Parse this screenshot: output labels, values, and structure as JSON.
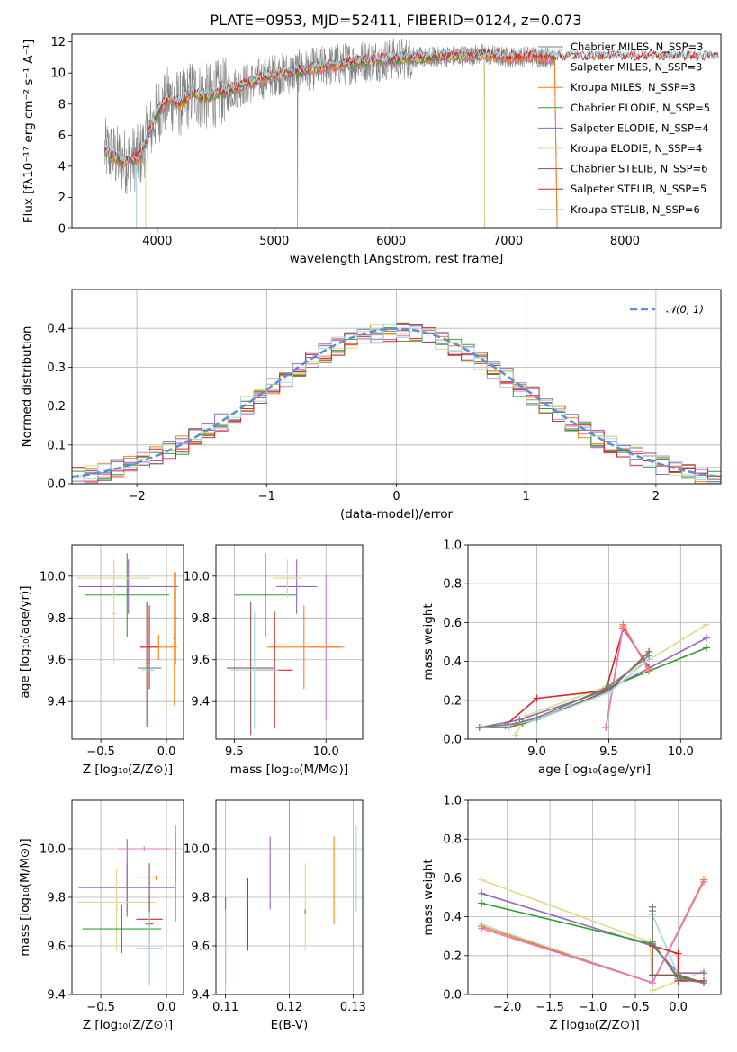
{
  "figure": {
    "title": "PLATE=0953, MJD=52411, FIBERID=0124, z=0.073"
  },
  "colors": {
    "chabrier_miles": "#7f7f7f",
    "salpeter_miles": "#e377c2",
    "kroupa_miles": "#ff7f0e",
    "chabrier_elodie": "#2ca02c",
    "salpeter_elodie": "#9467bd",
    "kroupa_elodie": "#dbdb8d",
    "chabrier_stelib": "#8c564b",
    "salpeter_stelib": "#d62728",
    "kroupa_stelib": "#9edae5",
    "data": "#808080",
    "normal": "#5b8fd6"
  },
  "chart_data": [
    {
      "id": "spectrum",
      "type": "line",
      "title": "PLATE=0953, MJD=52411, FIBERID=0124, z=0.073",
      "xlabel": "wavelength [Angstrom, rest frame]",
      "ylabel": "Flux [fλ10⁻¹⁷ erg cm⁻² s⁻¹ A⁻¹]",
      "xlim": [
        3270,
        8820
      ],
      "ylim": [
        0,
        12.5
      ],
      "xticks": [
        "4000",
        "5000",
        "6000",
        "7000",
        "8000"
      ],
      "xtick_values": [
        4000,
        5000,
        6000,
        7000,
        8000
      ],
      "yticks": [
        "0",
        "2",
        "4",
        "6",
        "8",
        "10",
        "12"
      ],
      "ytick_values": [
        0,
        2,
        4,
        6,
        8,
        10,
        12
      ],
      "legend_position": "right",
      "legend": [
        "Chabrier MILES, N_SSP=3",
        "Salpeter MILES, N_SSP=3",
        "Kroupa MILES, N_SSP=3",
        "Chabrier ELODIE, N_SSP=5",
        "Salpeter ELODIE, N_SSP=4",
        "Kroupa ELODIE, N_SSP=4",
        "Chabrier STELIB, N_SSP=6",
        "Salpeter STELIB, N_SSP=5",
        "Kroupa STELIB, N_SSP=6"
      ],
      "continuum": {
        "x": [
          3550,
          3700,
          3850,
          3950,
          4000,
          4100,
          4200,
          4300,
          4400,
          4600,
          4800,
          5000,
          5200,
          5500,
          5800,
          6000,
          6300,
          6500,
          6800,
          7000,
          7200,
          7400
        ],
        "y": [
          5.0,
          4.3,
          4.6,
          6.5,
          7.5,
          8.4,
          8.0,
          8.8,
          8.4,
          8.9,
          9.4,
          9.9,
          10.1,
          10.5,
          10.8,
          10.9,
          11.0,
          11.1,
          11.2,
          11.0,
          11.1,
          11.0
        ]
      }
    },
    {
      "id": "residuals",
      "type": "histogram",
      "xlabel": "(data-model)/error",
      "ylabel": "Normed distribution",
      "xlim": [
        -2.5,
        2.5
      ],
      "ylim": [
        0,
        0.5
      ],
      "xticks": [
        "−2",
        "−1",
        "0",
        "1",
        "2"
      ],
      "xtick_values": [
        -2,
        -1,
        0,
        1,
        2
      ],
      "yticks": [
        "0.0",
        "0.1",
        "0.2",
        "0.3",
        "0.4"
      ],
      "ytick_values": [
        0,
        0.1,
        0.2,
        0.3,
        0.4
      ],
      "bin_width": 0.1,
      "legend": [
        "𝒩(0, 1)"
      ],
      "legend_position": "top-right"
    },
    {
      "id": "age-vs-z",
      "type": "scatter",
      "xlabel": "Z [log₁₀(Z/Z⊙)]",
      "ylabel": "age  [log₁₀(age/yr)]",
      "xlim": [
        -0.72,
        0.13
      ],
      "ylim": [
        9.22,
        10.15
      ],
      "xticks": [
        "−0.5",
        "0.0"
      ],
      "xtick_values": [
        -0.5,
        0.0
      ],
      "yticks": [
        "9.4",
        "9.6",
        "9.8",
        "10.0"
      ],
      "ytick_values": [
        9.4,
        9.6,
        9.8,
        10.0
      ],
      "points": [
        {
          "model": "chabrier_elodie",
          "x": -0.3,
          "xerr": 0.32,
          "y": 9.91,
          "yerr": 0.2
        },
        {
          "model": "salpeter_elodie",
          "x": -0.29,
          "xerr": 0.38,
          "y": 9.95,
          "yerr": 0.13
        },
        {
          "model": "kroupa_elodie",
          "x": -0.4,
          "xerr": 0.28,
          "y": 9.99,
          "yerr": 0.09
        },
        {
          "model": "kroupa_elodie",
          "x": -0.4,
          "xerr": 0.02,
          "y": 9.82,
          "yerr": 0.24
        },
        {
          "model": "salpeter_miles",
          "x": 0.07,
          "xerr": 0.02,
          "y": 9.8,
          "yerr": 0.22
        },
        {
          "model": "kroupa_miles",
          "x": -0.06,
          "xerr": 0.14,
          "y": 9.66,
          "yerr": 0.06
        },
        {
          "model": "kroupa_miles",
          "x": 0.06,
          "xerr": 0.01,
          "y": 9.7,
          "yerr": 0.32
        },
        {
          "model": "salpeter_stelib",
          "x": -0.13,
          "xerr": 0.07,
          "y": 9.66,
          "yerr": 0.2
        },
        {
          "model": "chabrier_stelib",
          "x": -0.15,
          "xerr": 0.03,
          "y": 9.58,
          "yerr": 0.3
        },
        {
          "model": "kroupa_stelib",
          "x": -0.14,
          "xerr": 0.05,
          "y": 9.55,
          "yerr": 0.27
        },
        {
          "model": "chabrier_miles",
          "x": -0.13,
          "xerr": 0.09,
          "y": 9.56,
          "yerr": 0.02
        }
      ]
    },
    {
      "id": "age-vs-mass",
      "type": "scatter",
      "xlabel": "mass [log₁₀(M/M⊙)]",
      "ylabel": "",
      "xlim": [
        9.4,
        10.2
      ],
      "ylim": [
        9.22,
        10.15
      ],
      "xticks": [
        "9.5",
        "10.0"
      ],
      "xtick_values": [
        9.5,
        10.0
      ],
      "yticks": [
        "9.4",
        "9.6",
        "9.8",
        "10.0"
      ],
      "ytick_values": [
        9.4,
        9.6,
        9.8,
        10.0
      ],
      "points": [
        {
          "model": "chabrier_elodie",
          "x": 9.67,
          "xerr": 0.17,
          "y": 9.91,
          "yerr": 0.2
        },
        {
          "model": "salpeter_elodie",
          "x": 9.84,
          "xerr": 0.11,
          "y": 9.95,
          "yerr": 0.13
        },
        {
          "model": "kroupa_elodie",
          "x": 9.79,
          "xerr": 0.08,
          "y": 9.99,
          "yerr": 0.09
        },
        {
          "model": "salpeter_miles",
          "x": 10.0,
          "xerr": 0.1,
          "y": 9.66,
          "yerr": 0.35
        },
        {
          "model": "kroupa_miles",
          "x": 9.88,
          "xerr": 0.2,
          "y": 9.66,
          "yerr": 0.2
        },
        {
          "model": "salpeter_stelib",
          "x": 9.72,
          "xerr": 0.1,
          "y": 9.55,
          "yerr": 0.28
        },
        {
          "model": "chabrier_stelib",
          "x": 9.59,
          "xerr": 0.13,
          "y": 9.56,
          "yerr": 0.32
        },
        {
          "model": "kroupa_stelib",
          "x": 9.61,
          "xerr": 0.13,
          "y": 9.55,
          "yerr": 0.28
        }
      ]
    },
    {
      "id": "weight-vs-age",
      "type": "line",
      "xlabel": "age  [log₁₀(age/yr)]",
      "ylabel": "mass weight",
      "xlim": [
        8.52,
        10.28
      ],
      "ylim": [
        0,
        1
      ],
      "xticks": [
        "9.0",
        "9.5",
        "10.0"
      ],
      "xtick_values": [
        9.0,
        9.5,
        10.0
      ],
      "yticks": [
        "0.0",
        "0.2",
        "0.4",
        "0.6",
        "0.8",
        "1.0"
      ],
      "ytick_values": [
        0,
        0.2,
        0.4,
        0.6,
        0.8,
        1.0
      ],
      "series": [
        {
          "model": "kroupa_elodie",
          "x": [
            8.85,
            8.92,
            9.48,
            10.18
          ],
          "y": [
            0.02,
            0.12,
            0.27,
            0.59
          ]
        },
        {
          "model": "salpeter_elodie",
          "x": [
            8.6,
            8.88,
            9.48,
            10.18
          ],
          "y": [
            0.06,
            0.1,
            0.25,
            0.52
          ]
        },
        {
          "model": "chabrier_elodie",
          "x": [
            8.6,
            8.9,
            9.48,
            10.18
          ],
          "y": [
            0.06,
            0.08,
            0.26,
            0.47
          ]
        },
        {
          "model": "salpeter_stelib",
          "x": [
            8.6,
            8.78,
            9.0,
            9.48,
            9.6,
            9.78
          ],
          "y": [
            0.06,
            0.07,
            0.21,
            0.25,
            0.57,
            0.37
          ]
        },
        {
          "model": "kroupa_miles",
          "x": [
            9.48,
            9.6,
            9.78
          ],
          "y": [
            0.06,
            0.59,
            0.35
          ]
        },
        {
          "model": "salpeter_miles",
          "x": [
            9.48,
            9.6,
            9.78
          ],
          "y": [
            0.06,
            0.58,
            0.36
          ]
        },
        {
          "model": "chabrier_stelib",
          "x": [
            8.6,
            8.8,
            9.0,
            9.5,
            9.78
          ],
          "y": [
            0.06,
            0.06,
            0.1,
            0.25,
            0.45
          ]
        },
        {
          "model": "kroupa_stelib",
          "x": [
            8.6,
            8.8,
            9.0,
            9.5,
            9.78
          ],
          "y": [
            0.06,
            0.07,
            0.1,
            0.24,
            0.41
          ]
        },
        {
          "model": "chabrier_miles",
          "x": [
            8.6,
            8.85,
            9.0,
            9.5,
            9.78
          ],
          "y": [
            0.06,
            0.08,
            0.11,
            0.27,
            0.43
          ]
        }
      ]
    },
    {
      "id": "mass-vs-z",
      "type": "scatter",
      "xlabel": "Z [log₁₀(Z/Z⊙)]",
      "ylabel": "mass [log₁₀(M/M⊙)]",
      "xlim": [
        -0.72,
        0.13
      ],
      "ylim": [
        9.4,
        10.2
      ],
      "xticks": [
        "−0.5",
        "0.0"
      ],
      "xtick_values": [
        -0.5,
        0.0
      ],
      "yticks": [
        "9.4",
        "9.6",
        "9.8",
        "10.0"
      ],
      "ytick_values": [
        9.4,
        9.6,
        9.8,
        10.0
      ],
      "points": [
        {
          "model": "salpeter_elodie",
          "x": -0.3,
          "xerr": 0.37,
          "y": 9.84,
          "yerr": 0.1
        },
        {
          "model": "salpeter_elodie",
          "x": -0.3,
          "xerr": 0.01,
          "y": 9.88,
          "yerr": 0.16
        },
        {
          "model": "kroupa_elodie",
          "x": -0.38,
          "xerr": 0.3,
          "y": 9.78,
          "yerr": 0.05
        },
        {
          "model": "kroupa_elodie",
          "x": -0.38,
          "xerr": 0.01,
          "y": 9.75,
          "yerr": 0.17
        },
        {
          "model": "chabrier_elodie",
          "x": -0.34,
          "xerr": 0.3,
          "y": 9.67,
          "yerr": 0.1
        },
        {
          "model": "salpeter_miles",
          "x": -0.17,
          "xerr": 0.2,
          "y": 10.0,
          "yerr": 0.01
        },
        {
          "model": "salpeter_miles",
          "x": 0.07,
          "xerr": 0.01,
          "y": 9.98,
          "yerr": 0.12
        },
        {
          "model": "kroupa_miles",
          "x": -0.08,
          "xerr": 0.16,
          "y": 9.88,
          "yerr": 0.01
        },
        {
          "model": "kroupa_miles",
          "x": 0.07,
          "xerr": 0.01,
          "y": 9.88,
          "yerr": 0.18
        },
        {
          "model": "salpeter_stelib",
          "x": -0.13,
          "xerr": 0.1,
          "y": 9.71,
          "yerr": 0.1
        },
        {
          "model": "chabrier_stelib",
          "x": -0.13,
          "xerr": 0.03,
          "y": 9.69,
          "yerr": 0.25
        },
        {
          "model": "kroupa_stelib",
          "x": -0.13,
          "xerr": 0.1,
          "y": 9.59,
          "yerr": 0.15
        }
      ]
    },
    {
      "id": "mass-vs-ebv",
      "type": "scatter",
      "xlabel": "E(B-V)",
      "ylabel": "",
      "xlim": [
        0.1085,
        0.1315
      ],
      "ylim": [
        9.4,
        10.2
      ],
      "xticks": [
        "0.11",
        "0.12",
        "0.13"
      ],
      "xtick_values": [
        0.11,
        0.12,
        0.13
      ],
      "yticks": [
        "9.4",
        "9.6",
        "9.8",
        "10.0"
      ],
      "ytick_values": [
        9.4,
        9.6,
        9.8,
        10.0
      ],
      "points": [
        {
          "model": "chabrier_elodie",
          "x": 0.11,
          "yerr": 0.18,
          "y": 9.62
        },
        {
          "model": "kroupa_stelib",
          "x": 0.11,
          "yerr": 0.16,
          "y": 9.59
        },
        {
          "model": "salpeter_stelib",
          "x": 0.1135,
          "yerr": 0.15,
          "y": 9.73
        },
        {
          "model": "salpeter_elodie",
          "x": 0.117,
          "yerr": 0.15,
          "y": 9.9
        },
        {
          "model": "salpeter_miles",
          "x": 0.12,
          "yerr": 0.2,
          "y": 10.02
        },
        {
          "model": "kroupa_elodie",
          "x": 0.1225,
          "yerr": 0.18,
          "y": 9.76
        },
        {
          "model": "kroupa_miles",
          "x": 0.127,
          "yerr": 0.18,
          "y": 9.87
        },
        {
          "model": "kroupa_stelib",
          "x": 0.1305,
          "yerr": 0.18,
          "y": 9.92
        },
        {
          "model": "chabrier_elodie",
          "x": 0.1225,
          "yerr": 0.01,
          "y": 9.74
        }
      ]
    },
    {
      "id": "weight-vs-z",
      "type": "line",
      "xlabel": "Z [log₁₀(Z/Z⊙)]",
      "ylabel": "mass weight",
      "xlim": [
        -2.46,
        0.5
      ],
      "ylim": [
        0,
        1
      ],
      "xticks": [
        "−2.0",
        "−1.5",
        "−1.0",
        "−0.5",
        "0.0"
      ],
      "xtick_values": [
        -2.0,
        -1.5,
        -1.0,
        -0.5,
        0.0
      ],
      "yticks": [
        "0.0",
        "0.2",
        "0.4",
        "0.6",
        "0.8",
        "1.0"
      ],
      "ytick_values": [
        0,
        0.2,
        0.4,
        0.6,
        0.8,
        1.0
      ],
      "series": [
        {
          "model": "kroupa_elodie",
          "x": [
            -2.3,
            -0.33,
            -0.3,
            0.3
          ],
          "y": [
            0.59,
            0.27,
            0.02,
            0.12
          ]
        },
        {
          "model": "salpeter_elodie",
          "x": [
            -2.3,
            -0.3,
            0.0,
            0.3
          ],
          "y": [
            0.52,
            0.25,
            0.11,
            0.11
          ]
        },
        {
          "model": "chabrier_elodie",
          "x": [
            -2.3,
            -0.3,
            0.0,
            0.3
          ],
          "y": [
            0.47,
            0.26,
            0.09,
            0.06
          ]
        },
        {
          "model": "kroupa_stelib",
          "x": [
            -2.3,
            -0.3,
            -0.3,
            0.0,
            0.3
          ],
          "y": [
            0.36,
            0.06,
            0.41,
            0.1,
            0.06
          ]
        },
        {
          "model": "kroupa_miles",
          "x": [
            -2.3,
            -0.3,
            0.3
          ],
          "y": [
            0.35,
            0.06,
            0.59
          ]
        },
        {
          "model": "salpeter_miles",
          "x": [
            -2.3,
            -0.3,
            0.3
          ],
          "y": [
            0.34,
            0.06,
            0.58
          ]
        },
        {
          "model": "salpeter_stelib",
          "x": [
            -0.3,
            0.0,
            0.0,
            0.3
          ],
          "y": [
            0.25,
            0.21,
            0.07,
            0.07
          ]
        },
        {
          "model": "chabrier_stelib",
          "x": [
            -0.3,
            -0.3,
            0.0,
            0.3
          ],
          "y": [
            0.45,
            0.1,
            0.1,
            0.06
          ]
        },
        {
          "model": "chabrier_miles",
          "x": [
            -0.3,
            -0.3,
            0.0,
            0.3
          ],
          "y": [
            0.43,
            0.27,
            0.08,
            0.06
          ]
        }
      ]
    }
  ]
}
